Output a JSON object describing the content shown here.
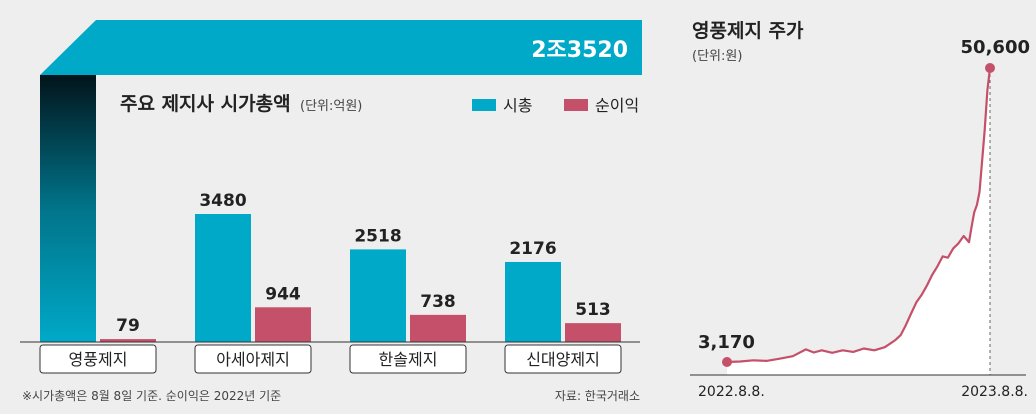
{
  "colors": {
    "market_cap": "#00a9c8",
    "net_income": "#c4506a",
    "stock_line": "#c4506a",
    "axis": "#444444",
    "background": "#eeeeee"
  },
  "chart_data": [
    {
      "type": "bar",
      "title": "주요 제지사 시가총액",
      "unit_note": "(단위:억원)",
      "categories": [
        "영풍제지",
        "아세아제지",
        "한솔제지",
        "신대양제지"
      ],
      "series": [
        {
          "name": "시총",
          "values": [
            23520,
            3480,
            2518,
            2176
          ],
          "labels": [
            "2조3520",
            "3480",
            "2518",
            "2176"
          ]
        },
        {
          "name": "순이익",
          "values": [
            79,
            944,
            738,
            513
          ],
          "labels": [
            "79",
            "944",
            "738",
            "513"
          ]
        }
      ],
      "footnote": "※시가총액은 8월 8일 기준. 순이익은 2022년 기준",
      "source": "자료: 한국거래소"
    },
    {
      "type": "line",
      "title": "영풍제지 주가",
      "unit_note": "(단위:원)",
      "x_labels": [
        "2022.8.8.",
        "2023.8.8."
      ],
      "start_label": "3,170",
      "end_label": "50,600",
      "x": [
        0,
        0.05,
        0.1,
        0.15,
        0.2,
        0.25,
        0.3,
        0.33,
        0.36,
        0.4,
        0.44,
        0.48,
        0.52,
        0.56,
        0.6,
        0.64,
        0.66,
        0.68,
        0.7,
        0.72,
        0.74,
        0.76,
        0.78,
        0.8,
        0.82,
        0.84,
        0.86,
        0.88,
        0.9,
        0.92,
        0.93,
        0.94,
        0.95,
        0.96,
        0.97,
        0.98,
        0.99,
        1.0
      ],
      "values": [
        3170,
        3250,
        3450,
        3350,
        3700,
        4100,
        5200,
        4700,
        5050,
        4650,
        5050,
        4800,
        5350,
        5050,
        5550,
        6700,
        7500,
        9100,
        11000,
        12800,
        14000,
        15500,
        17200,
        18600,
        20200,
        20000,
        21500,
        22300,
        23500,
        22500,
        25000,
        27300,
        28500,
        30600,
        35600,
        40600,
        47000,
        50600
      ]
    }
  ]
}
